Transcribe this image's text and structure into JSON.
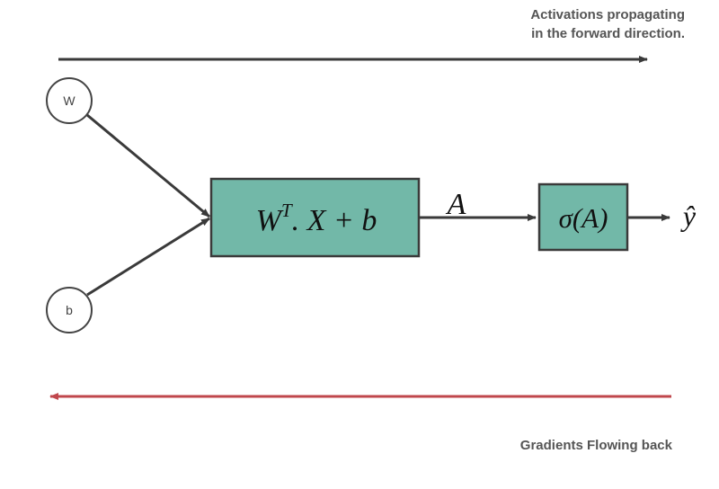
{
  "captions": {
    "forward_line1": "Activations propagating",
    "forward_line2": "in the forward direction.",
    "backward": "Gradients Flowing back"
  },
  "nodes": {
    "weight": "W",
    "bias": "b"
  },
  "linear_box": {
    "base1": "W",
    "superscript": "T",
    "rest": ". X + b"
  },
  "activation_label": "A",
  "sigmoid_box": "σ(A)",
  "output_label": "ŷ",
  "colors": {
    "box_fill": "#72b8a8",
    "box_stroke": "#3a3a3a",
    "forward_arrow": "#3a3a3a",
    "backward_arrow": "#c0474c",
    "edge": "#3a3a3a",
    "caption_text": "#555555"
  }
}
